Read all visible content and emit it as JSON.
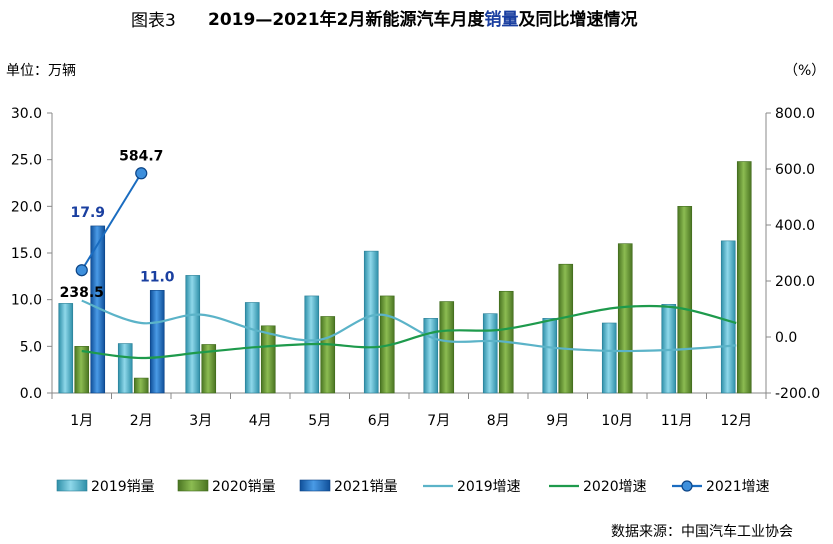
{
  "header": {
    "title_prefix": "图表3",
    "title_main_a": "2019—2021年2月新能源汽车月度",
    "title_main_highlight": "销量",
    "title_main_b": "及同比增速情况"
  },
  "units": {
    "left": "单位：万辆",
    "right": "（%）"
  },
  "source": "数据来源：中国汽车工业协会",
  "chart_data": {
    "type": "bar",
    "categories": [
      "1月",
      "2月",
      "3月",
      "4月",
      "5月",
      "6月",
      "7月",
      "8月",
      "9月",
      "10月",
      "11月",
      "12月"
    ],
    "left_axis": {
      "ylim": [
        0,
        30
      ],
      "ticks": [
        "0.0",
        "5.0",
        "10.0",
        "15.0",
        "20.0",
        "25.0",
        "30.0"
      ]
    },
    "right_axis": {
      "ylim": [
        -200,
        800
      ],
      "ticks": [
        "-200.0",
        "0.0",
        "200.0",
        "400.0",
        "600.0",
        "800.0"
      ]
    },
    "bar_series": [
      {
        "name": "2019销量",
        "color": "#4bacc6",
        "values": [
          9.6,
          5.3,
          12.6,
          9.7,
          10.4,
          15.2,
          8.0,
          8.5,
          8.0,
          7.5,
          9.5,
          16.3
        ]
      },
      {
        "name": "2020销量",
        "color": "#5c8a2f",
        "values": [
          5.0,
          1.6,
          5.2,
          7.2,
          8.2,
          10.4,
          9.8,
          10.9,
          13.8,
          16.0,
          20.0,
          24.8
        ]
      },
      {
        "name": "2021销量",
        "color": "#1a6cc0",
        "values": [
          17.9,
          11.0
        ]
      }
    ],
    "line_series": [
      {
        "name": "2019增速",
        "color": "#5bb3c8",
        "values": [
          130,
          50,
          80,
          20,
          -10,
          80,
          -10,
          -15,
          -40,
          -50,
          -45,
          -30
        ]
      },
      {
        "name": "2020增速",
        "color": "#1e9a4c",
        "values": [
          -50,
          -75,
          -55,
          -35,
          -25,
          -35,
          20,
          25,
          65,
          105,
          105,
          50
        ]
      },
      {
        "name": "2021增速",
        "color": "#1a6cc0",
        "values": [
          238.5,
          584.7
        ]
      }
    ],
    "data_labels": [
      {
        "text": "17.9",
        "color": "#1a3fa0"
      },
      {
        "text": "11.0",
        "color": "#1a3fa0"
      },
      {
        "text": "238.5",
        "color": "#000000"
      },
      {
        "text": "584.7",
        "color": "#000000"
      }
    ]
  }
}
